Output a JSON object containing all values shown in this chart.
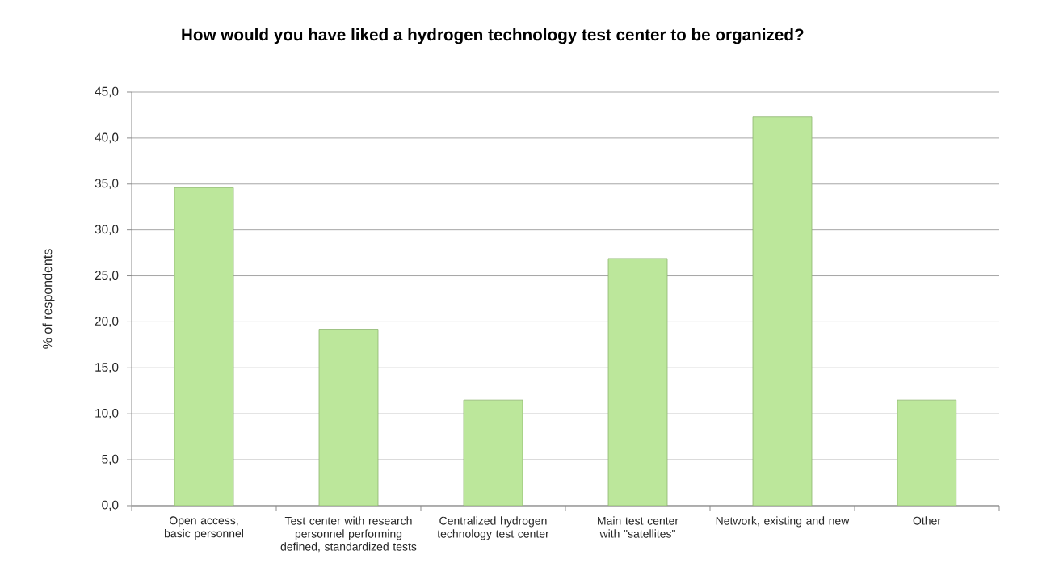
{
  "chart_data": {
    "type": "bar",
    "title": "How would you have liked a hydrogen technology test center to be organized?",
    "ylabel": "% of respondents",
    "categories": [
      "Open access, basic personnel",
      "Test center with research personnel performing defined, standardized tests",
      "Centralized hydrogen technology test center",
      "Main test center with \"satellites\"",
      "Network, existing and new",
      "Other"
    ],
    "values": [
      34.6,
      19.2,
      11.5,
      26.9,
      42.3,
      11.5
    ],
    "color": "#bce79b",
    "ylim": [
      0,
      45
    ],
    "yticks": [
      {
        "value": 0,
        "label": "0,0"
      },
      {
        "value": 5,
        "label": "5,0"
      },
      {
        "value": 10,
        "label": "10,0"
      },
      {
        "value": 15,
        "label": "15,0"
      },
      {
        "value": 20,
        "label": "20,0"
      },
      {
        "value": 25,
        "label": "25,0"
      },
      {
        "value": 30,
        "label": "30,0"
      },
      {
        "value": 35,
        "label": "35,0"
      },
      {
        "value": 40,
        "label": "40,0"
      },
      {
        "value": 45,
        "label": "45,0"
      }
    ],
    "grid": "y"
  }
}
